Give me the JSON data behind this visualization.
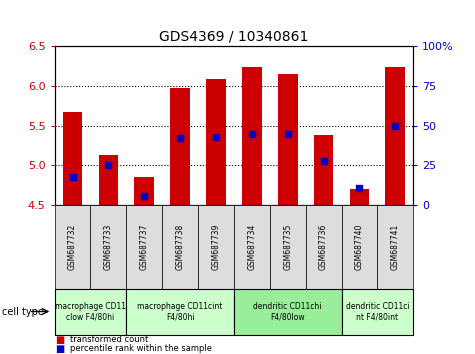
{
  "title": "GDS4369 / 10340861",
  "samples": [
    "GSM687732",
    "GSM687733",
    "GSM687737",
    "GSM687738",
    "GSM687739",
    "GSM687734",
    "GSM687735",
    "GSM687736",
    "GSM687740",
    "GSM687741"
  ],
  "transformed_counts": [
    5.67,
    5.13,
    4.85,
    5.97,
    6.08,
    6.24,
    6.15,
    5.38,
    4.7,
    6.24
  ],
  "percentile_ranks": [
    18,
    25,
    6,
    42,
    43,
    45,
    45,
    28,
    11,
    50
  ],
  "ylim_left": [
    4.5,
    6.5
  ],
  "ylim_right": [
    0,
    100
  ],
  "yticks_left": [
    4.5,
    5.0,
    5.5,
    6.0,
    6.5
  ],
  "yticks_right": [
    0,
    25,
    50,
    75,
    100
  ],
  "bar_color": "#cc0000",
  "dot_color": "#0000cc",
  "bar_bottom": 4.5,
  "cell_types": [
    {
      "label": "macrophage CD11\nclow F4/80hi",
      "span": [
        0,
        2
      ],
      "color": "#ccffcc"
    },
    {
      "label": "macrophage CD11cint\nF4/80hi",
      "span": [
        2,
        5
      ],
      "color": "#ccffcc"
    },
    {
      "label": "dendritic CD11chi\nF4/80low",
      "span": [
        5,
        8
      ],
      "color": "#99ee99"
    },
    {
      "label": "dendritic CD11ci\nnt F4/80int",
      "span": [
        8,
        10
      ],
      "color": "#ccffcc"
    }
  ],
  "legend_red": "transformed count",
  "legend_blue": "percentile rank within the sample",
  "cell_type_label": "cell type",
  "sample_box_color": "#dddddd",
  "bg_color": "#ffffff",
  "plot_bg": "#ffffff",
  "tick_color_left": "#cc0000",
  "tick_color_right": "#0000cc"
}
